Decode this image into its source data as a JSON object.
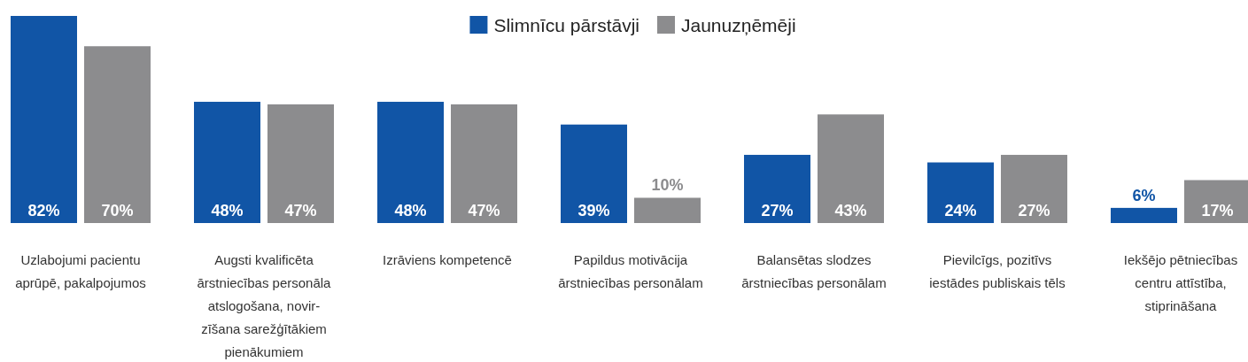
{
  "chart_data": {
    "type": "bar",
    "categories": [
      "Uzlabojumi pacientu aprūpē, pakalpojumos",
      "Augsti kvalificēta ārstniecības personāla atslogošana, novir-zīšana sarežģītākiem pienākumiem",
      "Izrāviens kompetencē",
      "Papildus motivācija ārstniecības personālam",
      "Balansētas slodzes ārstniecības personālam",
      "Pievilcīgs, pozitīvs iestādes publiskais tēls",
      "Iekšējo pētniecības centru attīstība, stiprināšana"
    ],
    "series": [
      {
        "name": "Slimnīcu pārstāvji",
        "color": "#1155a6",
        "values": [
          82,
          48,
          48,
          39,
          27,
          24,
          6
        ],
        "value_labels": [
          "82%",
          "48%",
          "48%",
          "39%",
          "27%",
          "24%",
          "6%"
        ]
      },
      {
        "name": "Jaunuzņēmēji",
        "color": "#8c8c8e",
        "values": [
          70,
          47,
          47,
          10,
          43,
          27,
          17
        ],
        "value_labels": [
          "70%",
          "47%",
          "47%",
          "10%",
          "43%",
          "27%",
          "17%"
        ]
      }
    ],
    "legend": "top",
    "grid": false
  }
}
